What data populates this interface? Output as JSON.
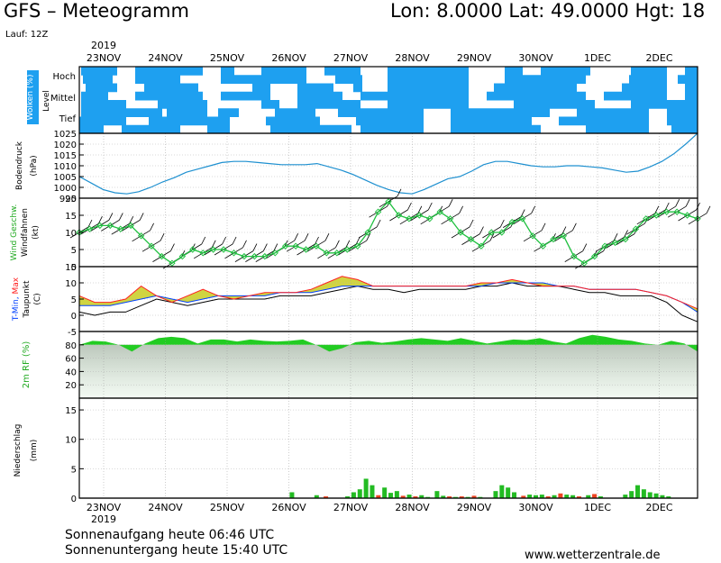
{
  "header": {
    "model_title": "GFS – Meteogramm",
    "location": "Lon: 8.0000 Lat: 49.0000 Hgt: 18",
    "run": "Lauf: 12Z"
  },
  "footer": {
    "sunrise": "Sonnenaufgang heute 06:46 UTC",
    "sunset": "Sonnenuntergang heute 15:40 UTC",
    "site": "www.wetterzentrale.de"
  },
  "chart_data": {
    "type": "line",
    "year_label": "2019",
    "date_labels": [
      "23NOV",
      "24NOV",
      "25NOV",
      "26NOV",
      "27NOV",
      "28NOV",
      "29NOV",
      "30NOV",
      "1DEC",
      "2DEC"
    ],
    "panels": {
      "clouds": {
        "ylabel": "Wolken (%)",
        "level_label": "Level",
        "level_names": [
          "Hoch",
          "Mittel",
          "Tief"
        ],
        "color": "#1ea0f0"
      },
      "pressure": {
        "ylabel1": "Bodendruck",
        "ylabel2": "(hPa)",
        "ylim": [
          995,
          1025
        ],
        "ticks": [
          "995",
          "1000",
          "1005",
          "1010",
          "1015",
          "1020",
          "1025"
        ],
        "color": "#1e90d0",
        "values": [
          1005,
          1002,
          999,
          997.5,
          997,
          998,
          1000,
          1002.5,
          1004.5,
          1007,
          1008.5,
          1010,
          1011.5,
          1012,
          1012,
          1011.5,
          1011,
          1010.5,
          1010.5,
          1010.5,
          1011,
          1009.5,
          1008,
          1006,
          1003.5,
          1001,
          999,
          997.5,
          997,
          999,
          1001.5,
          1004,
          1005,
          1007.5,
          1010.5,
          1012,
          1012,
          1011,
          1010,
          1009.5,
          1009.5,
          1010,
          1010,
          1009.5,
          1009,
          1008,
          1007,
          1007.5,
          1009.5,
          1012,
          1015.5,
          1020,
          1025
        ]
      },
      "wind": {
        "ylabel1": "Wind Geschw.",
        "ylabel2": "Windfahnen",
        "ylabel3": "(kt)",
        "ylim": [
          0,
          20
        ],
        "ticks": [
          "0",
          "5",
          "10",
          "15",
          "20"
        ],
        "color": "#20c040",
        "values": [
          10,
          11,
          12,
          12,
          11,
          12,
          9,
          6,
          3,
          1,
          3,
          5,
          4,
          5,
          5,
          4,
          3,
          3,
          3,
          4,
          6,
          6,
          5,
          6,
          4,
          4,
          5,
          6,
          10,
          16,
          19,
          15,
          14,
          15,
          14,
          16,
          14,
          10,
          8,
          6,
          10,
          10,
          13,
          14,
          9,
          6,
          8,
          9,
          3,
          1,
          3,
          6,
          7,
          8,
          11,
          14,
          15,
          16,
          16,
          15,
          14
        ]
      },
      "temperature": {
        "ylabel1": "T-Min, Max",
        "ylabel2": "Taupunkt",
        "ylabel3": "(C)",
        "ylim": [
          -5,
          15
        ],
        "ticks": [
          "-5",
          "0",
          "5",
          "10",
          "15"
        ],
        "series": [
          {
            "name": "Taupunkt",
            "color": "#000000",
            "values": [
              1,
              0,
              1,
              1,
              3,
              5,
              4,
              3,
              4,
              5,
              5,
              5,
              5,
              6,
              6,
              6,
              7,
              8,
              9,
              8,
              8,
              7,
              8,
              8,
              8,
              8,
              9,
              9,
              10,
              9,
              9,
              9,
              8,
              7,
              7,
              6,
              6,
              6,
              4,
              0,
              -2
            ]
          },
          {
            "name": "T-Min",
            "color": "#0040ff",
            "values": [
              3,
              3,
              3,
              4,
              5,
              6,
              5,
              4,
              5,
              6,
              6,
              6,
              6,
              7,
              7,
              7,
              8,
              9,
              9,
              9,
              9,
              9,
              9,
              9,
              9,
              9,
              9,
              10,
              10,
              10,
              10,
              9,
              9,
              8,
              8,
              8,
              8,
              7,
              6,
              4,
              1
            ]
          },
          {
            "name": "T-Max",
            "color": "#ff2020",
            "values": [
              6,
              4,
              4,
              5,
              9,
              6,
              4,
              6,
              8,
              6,
              5,
              6,
              7,
              7,
              7,
              8,
              10,
              12,
              11,
              9,
              9,
              9,
              9,
              9,
              9,
              9,
              10,
              10,
              11,
              10,
              9,
              9,
              9,
              8,
              8,
              8,
              8,
              7,
              6,
              4,
              2
            ]
          }
        ]
      },
      "humidity": {
        "ylabel": "2m RF (%)",
        "ylim": [
          0,
          100
        ],
        "ticks": [
          "20",
          "40",
          "60",
          "80"
        ],
        "color": "#22cc22",
        "values": [
          80,
          86,
          85,
          80,
          70,
          82,
          90,
          92,
          90,
          82,
          88,
          88,
          85,
          88,
          86,
          85,
          86,
          88,
          80,
          70,
          75,
          84,
          86,
          83,
          85,
          88,
          90,
          88,
          86,
          90,
          86,
          82,
          85,
          88,
          87,
          90,
          85,
          82,
          90,
          95,
          92,
          88,
          86,
          82,
          80,
          86,
          82,
          70
        ]
      },
      "precip": {
        "ylabel1": "Niederschlag",
        "ylabel2": "(mm)",
        "ylim": [
          0,
          17
        ],
        "ticks": [
          "0",
          "5",
          "10",
          "15"
        ],
        "bars": [
          {
            "day": 3.05,
            "value": 1.0,
            "color": "#22bb22"
          },
          {
            "day": 3.45,
            "value": 0.5,
            "color": "#22bb22"
          },
          {
            "day": 3.6,
            "value": 0.3,
            "color": "#ee4422"
          },
          {
            "day": 3.95,
            "value": 0.3,
            "color": "#22bb22"
          },
          {
            "day": 4.05,
            "value": 1.0,
            "color": "#22bb22"
          },
          {
            "day": 4.15,
            "value": 1.5,
            "color": "#22bb22"
          },
          {
            "day": 4.25,
            "value": 3.3,
            "color": "#22bb22"
          },
          {
            "day": 4.35,
            "value": 2.2,
            "color": "#22bb22"
          },
          {
            "day": 4.45,
            "value": 0.5,
            "color": "#ee4422"
          },
          {
            "day": 4.55,
            "value": 1.8,
            "color": "#22bb22"
          },
          {
            "day": 4.65,
            "value": 0.9,
            "color": "#22bb22"
          },
          {
            "day": 4.75,
            "value": 1.2,
            "color": "#22bb22"
          },
          {
            "day": 4.85,
            "value": 0.4,
            "color": "#ee4422"
          },
          {
            "day": 4.95,
            "value": 0.6,
            "color": "#22bb22"
          },
          {
            "day": 5.05,
            "value": 0.3,
            "color": "#ee4422"
          },
          {
            "day": 5.15,
            "value": 0.5,
            "color": "#22bb22"
          },
          {
            "day": 5.25,
            "value": 0.2,
            "color": "#22bb22"
          },
          {
            "day": 5.4,
            "value": 1.2,
            "color": "#22bb22"
          },
          {
            "day": 5.5,
            "value": 0.4,
            "color": "#22bb22"
          },
          {
            "day": 5.6,
            "value": 0.3,
            "color": "#ee4422"
          },
          {
            "day": 5.7,
            "value": 0.2,
            "color": "#22bb22"
          },
          {
            "day": 5.8,
            "value": 0.3,
            "color": "#ee4422"
          },
          {
            "day": 5.9,
            "value": 0.2,
            "color": "#22bb22"
          },
          {
            "day": 6.0,
            "value": 0.4,
            "color": "#ee4422"
          },
          {
            "day": 6.1,
            "value": 0.2,
            "color": "#22bb22"
          },
          {
            "day": 6.35,
            "value": 1.2,
            "color": "#22bb22"
          },
          {
            "day": 6.45,
            "value": 2.2,
            "color": "#22bb22"
          },
          {
            "day": 6.55,
            "value": 1.8,
            "color": "#22bb22"
          },
          {
            "day": 6.65,
            "value": 1.0,
            "color": "#22bb22"
          },
          {
            "day": 6.8,
            "value": 0.4,
            "color": "#ee4422"
          },
          {
            "day": 6.9,
            "value": 0.6,
            "color": "#22bb22"
          },
          {
            "day": 7.0,
            "value": 0.5,
            "color": "#22bb22"
          },
          {
            "day": 7.1,
            "value": 0.6,
            "color": "#22bb22"
          },
          {
            "day": 7.2,
            "value": 0.3,
            "color": "#ee4422"
          },
          {
            "day": 7.3,
            "value": 0.5,
            "color": "#22bb22"
          },
          {
            "day": 7.4,
            "value": 0.8,
            "color": "#ee4422"
          },
          {
            "day": 7.5,
            "value": 0.6,
            "color": "#22bb22"
          },
          {
            "day": 7.6,
            "value": 0.5,
            "color": "#22bb22"
          },
          {
            "day": 7.7,
            "value": 0.3,
            "color": "#ee4422"
          },
          {
            "day": 7.85,
            "value": 0.5,
            "color": "#22bb22"
          },
          {
            "day": 7.95,
            "value": 0.7,
            "color": "#ee4422"
          },
          {
            "day": 8.05,
            "value": 0.3,
            "color": "#22bb22"
          },
          {
            "day": 8.45,
            "value": 0.6,
            "color": "#22bb22"
          },
          {
            "day": 8.55,
            "value": 1.2,
            "color": "#22bb22"
          },
          {
            "day": 8.65,
            "value": 2.2,
            "color": "#22bb22"
          },
          {
            "day": 8.75,
            "value": 1.5,
            "color": "#22bb22"
          },
          {
            "day": 8.85,
            "value": 1.0,
            "color": "#22bb22"
          },
          {
            "day": 8.95,
            "value": 0.8,
            "color": "#22bb22"
          },
          {
            "day": 9.05,
            "value": 0.5,
            "color": "#22bb22"
          },
          {
            "day": 9.15,
            "value": 0.3,
            "color": "#22bb22"
          }
        ]
      }
    }
  }
}
